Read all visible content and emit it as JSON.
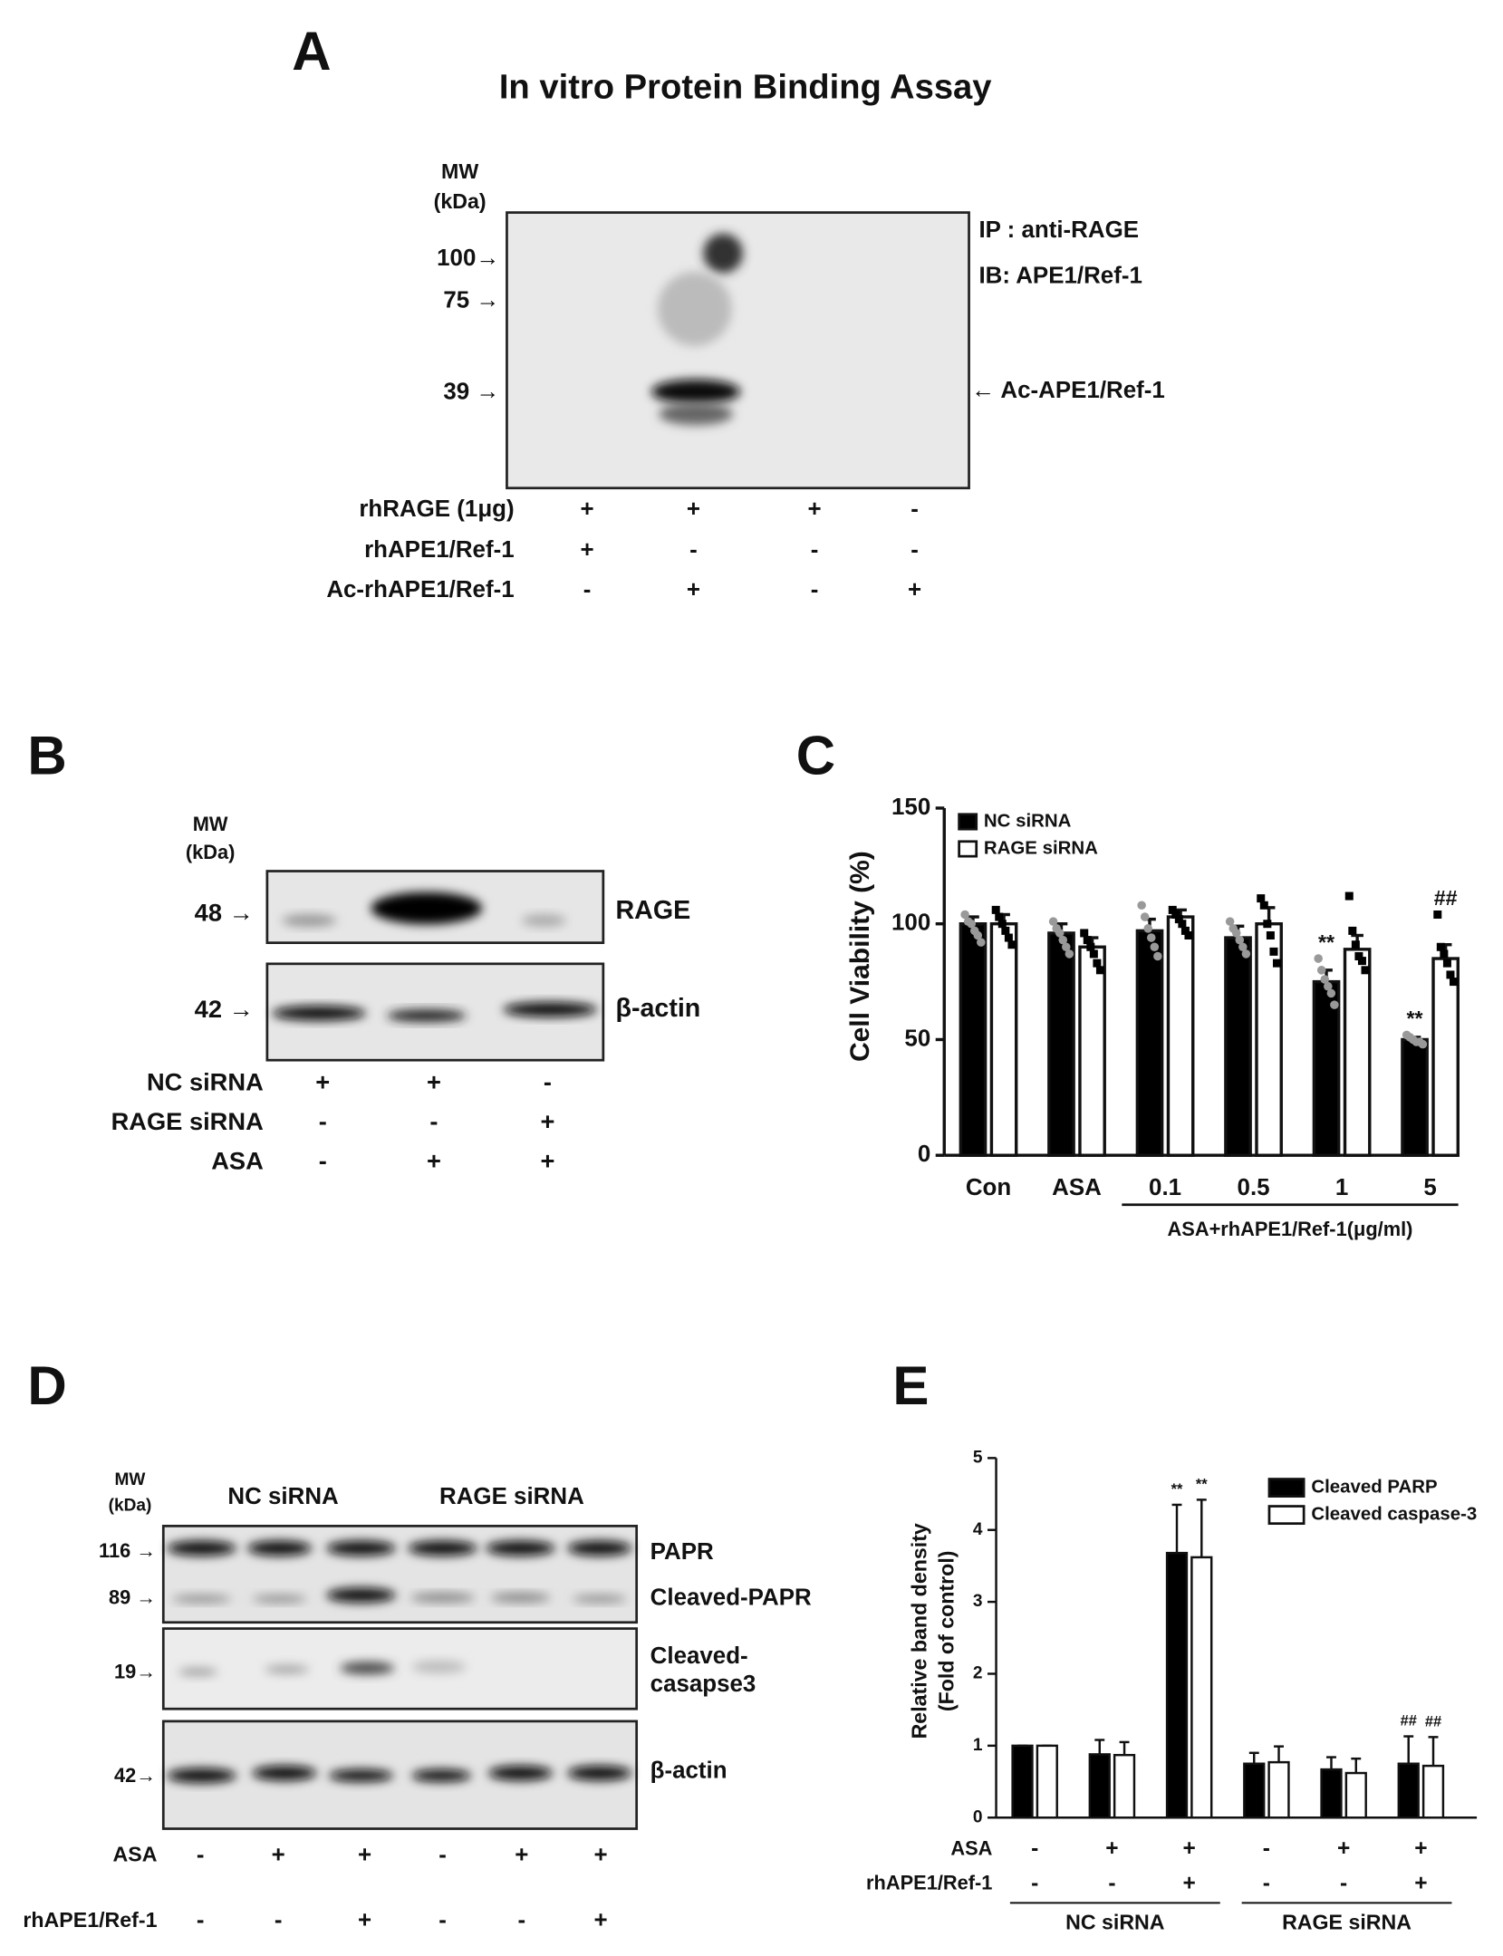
{
  "panel_a": {
    "label": "A",
    "title": "In vitro Protein Binding Assay",
    "mw_header": [
      "MW",
      "(kDa)"
    ],
    "markers": [
      "100→",
      "75 →",
      "39 →"
    ],
    "annotations": [
      "IP : anti-RAGE",
      "IB: APE1/Ref-1",
      "← Ac-APE1/Ref-1"
    ],
    "rows": [
      {
        "name": "rhRAGE (1μg)",
        "signs": [
          "+",
          "+",
          "+",
          "-"
        ]
      },
      {
        "name": "rhAPE1/Ref-1",
        "signs": [
          "+",
          "-",
          "-",
          "-"
        ]
      },
      {
        "name": "Ac-rhAPE1/Ref-1",
        "signs": [
          "-",
          "+",
          "-",
          "+"
        ]
      }
    ]
  },
  "panel_b": {
    "label": "B",
    "mw_header": [
      "MW",
      "(kDa)"
    ],
    "markers": [
      "48 →",
      "42 →"
    ],
    "bands": [
      "RAGE",
      "β-actin"
    ],
    "rows": [
      {
        "name": "NC siRNA",
        "signs": [
          "+",
          "+",
          "-"
        ]
      },
      {
        "name": "RAGE siRNA",
        "signs": [
          "-",
          "-",
          "+"
        ]
      },
      {
        "name": "ASA",
        "signs": [
          "-",
          "+",
          "+"
        ]
      }
    ]
  },
  "panel_d": {
    "label": "D",
    "mw_header": [
      "MW",
      "(kDa)"
    ],
    "groups": [
      "NC siRNA",
      "RAGE siRNA"
    ],
    "markers": [
      "116 →",
      "89 →",
      "19→",
      "42→"
    ],
    "bands": [
      "PAPR",
      "Cleaved-PAPR",
      "Cleaved-",
      "casapse3",
      "β-actin"
    ],
    "rows": [
      {
        "name": "ASA",
        "signs": [
          "-",
          "+",
          "+",
          "-",
          "+",
          "+"
        ]
      },
      {
        "name": "rhAPE1/Ref-1",
        "signs": [
          "-",
          "-",
          "+",
          "-",
          "-",
          "+"
        ]
      }
    ]
  },
  "panel_c_label": "C",
  "panel_e_label": "E",
  "chart_data": [
    {
      "type": "bar",
      "ylabel": "Cell Viability (%)",
      "categories": [
        "Con",
        "ASA",
        "0.1",
        "0.5",
        "1",
        "5"
      ],
      "group_label": "ASA+rhAPE1/Ref-1(μg/ml)",
      "ylim": [
        0,
        150
      ],
      "yticks": [
        0,
        50,
        100,
        150
      ],
      "series": [
        {
          "name": "NC siRNA",
          "color": "#000000",
          "point_color": "#999999",
          "values": [
            100,
            96,
            97,
            94,
            75,
            50
          ],
          "errors": [
            3,
            4,
            5,
            5,
            5,
            1
          ],
          "significance": [
            null,
            null,
            null,
            null,
            "**",
            "**"
          ],
          "points": [
            [
              104,
              101,
              100,
              97,
              95,
              92
            ],
            [
              101,
              98,
              96,
              93,
              90,
              87
            ],
            [
              108,
              103,
              98,
              94,
              90,
              86
            ],
            [
              101,
              98,
              96,
              93,
              90,
              87
            ],
            [
              85,
              80,
              76,
              73,
              70,
              65
            ],
            [
              52,
              51,
              50,
              49,
              49,
              48
            ]
          ]
        },
        {
          "name": "RAGE siRNA",
          "color": "#ffffff",
          "point_color": "#000000",
          "values": [
            100,
            90,
            103,
            100,
            89,
            85
          ],
          "errors": [
            4,
            4,
            3,
            7,
            6,
            6
          ],
          "significance": [
            null,
            null,
            null,
            null,
            null,
            "##"
          ],
          "points": [
            [
              106,
              103,
              100,
              97,
              94,
              91
            ],
            [
              96,
              93,
              90,
              87,
              83,
              80
            ],
            [
              106,
              104,
              102,
              100,
              97,
              95
            ],
            [
              111,
              108,
              100,
              95,
              88,
              83
            ],
            [
              112,
              97,
              91,
              86,
              84,
              80
            ],
            [
              104,
              90,
              87,
              83,
              78,
              75
            ]
          ]
        }
      ]
    },
    {
      "type": "bar",
      "ylabel": [
        "Relative band density",
        "(Fold of control)"
      ],
      "categories": [
        null,
        null,
        null,
        null,
        null,
        null
      ],
      "ylim": [
        0,
        5
      ],
      "yticks": [
        0,
        1,
        2,
        3,
        4,
        5
      ],
      "rows": [
        {
          "name": "ASA",
          "signs": [
            "-",
            "+",
            "+",
            "-",
            "+",
            "+"
          ]
        },
        {
          "name": "rhAPE1/Ref-1",
          "signs": [
            "-",
            "-",
            "+",
            "-",
            "-",
            "+"
          ]
        }
      ],
      "groups": [
        "NC siRNA",
        "RAGE siRNA"
      ],
      "series": [
        {
          "name": "Cleaved PARP",
          "color": "#000000",
          "values": [
            1,
            0.88,
            3.68,
            0.75,
            0.67,
            0.75
          ],
          "errors": [
            0,
            0.2,
            0.67,
            0.15,
            0.17,
            0.38
          ],
          "significance": [
            null,
            null,
            "**",
            null,
            null,
            "##"
          ]
        },
        {
          "name": "Cleaved caspase-3",
          "color": "#ffffff",
          "values": [
            1,
            0.87,
            3.62,
            0.77,
            0.62,
            0.72
          ],
          "errors": [
            0,
            0.18,
            0.8,
            0.22,
            0.2,
            0.4
          ],
          "significance": [
            null,
            null,
            "**",
            null,
            null,
            "##"
          ]
        }
      ]
    }
  ]
}
